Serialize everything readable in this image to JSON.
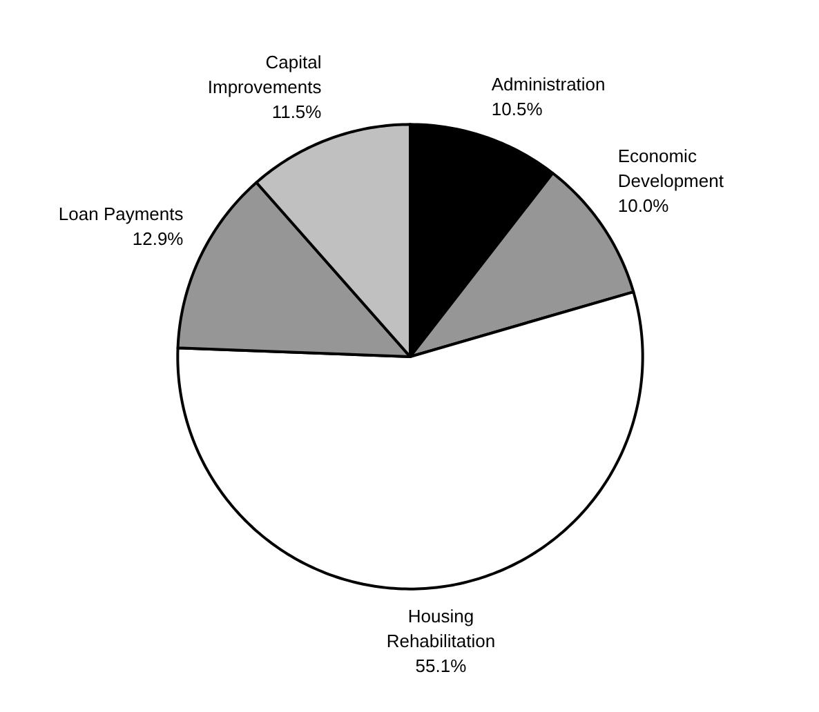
{
  "chart_data": {
    "type": "pie",
    "categories": [
      "Administration",
      "Economic Development",
      "Housing Rehabilitation",
      "Loan Payments",
      "Capital Improvements"
    ],
    "values": [
      10.5,
      10.0,
      55.1,
      12.9,
      11.5
    ],
    "value_labels": [
      "10.5%",
      "10.0%",
      "55.1%",
      "12.9%",
      "11.5%"
    ],
    "colors": [
      "#000000",
      "#969696",
      "#ffffff",
      "#969696",
      "#c0c0c0"
    ]
  }
}
